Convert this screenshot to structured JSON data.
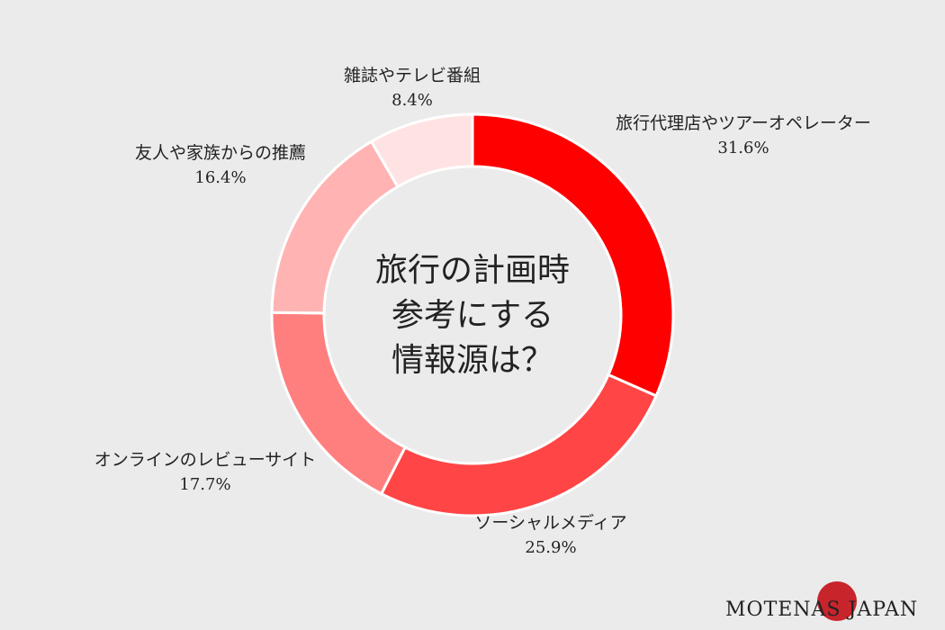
{
  "chart_data": {
    "type": "pie",
    "donut": true,
    "title_lines": [
      "旅行の計画時",
      "参考にする",
      "情報源は？"
    ],
    "slices": [
      {
        "label": "旅行代理店やツアーオペレーター",
        "value": 31.6,
        "pct_label": "31.6%",
        "color": "#ff0000"
      },
      {
        "label": "ソーシャルメディア",
        "value": 25.9,
        "pct_label": "25.9%",
        "color": "#ff4545"
      },
      {
        "label": "オンラインのレビューサイト",
        "value": 17.7,
        "pct_label": "17.7%",
        "color": "#ff7f7f"
      },
      {
        "label": "友人や家族からの推薦",
        "value": 16.4,
        "pct_label": "16.4%",
        "color": "#ffb3b3"
      },
      {
        "label": "雑誌やテレビ番組",
        "value": 8.4,
        "pct_label": "8.4%",
        "color": "#ffe3e3"
      }
    ]
  },
  "brand": {
    "text": "MOTENAS JAPAN",
    "dot_color": "#c8242b"
  }
}
